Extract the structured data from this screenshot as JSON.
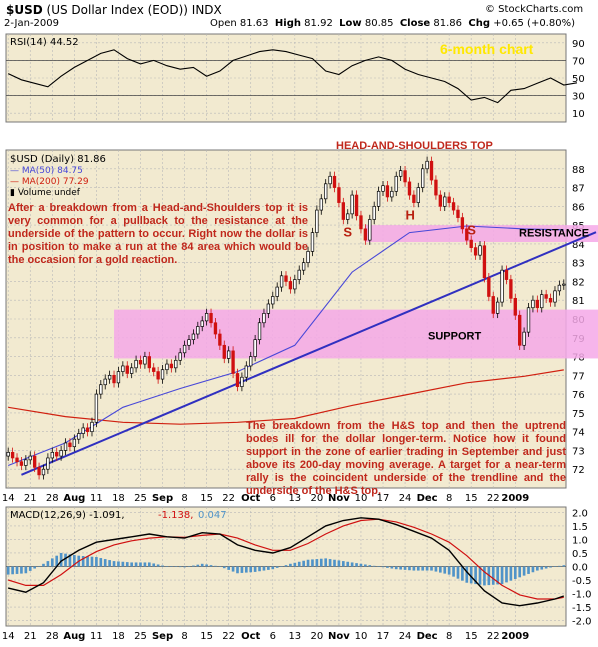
{
  "header": {
    "symbol": "$USD",
    "name": "(US Dollar Index (EOD))",
    "exchange": "INDX",
    "credit": "© StockCharts.com",
    "date": "2-Jan-2009",
    "open_label": "Open",
    "open": "81.63",
    "high_label": "High",
    "high": "81.92",
    "low_label": "Low",
    "low": "80.85",
    "close_label": "Close",
    "close": "81.86",
    "chg_label": "Chg",
    "chg": "+0.65 (+0.80%)"
  },
  "colors": {
    "panel_bg": "#f2ead0",
    "grid": "#b8b8b8",
    "pink_zone": "#f4a8e8",
    "trendline": "#3030c0",
    "ma50": "#4848d8",
    "ma200": "#d02010",
    "annotation": "#c0281c",
    "chart_title": "#ffe800",
    "candle_up": "#000000",
    "candle_down": "#d01010"
  },
  "chart_data": [
    {
      "type": "line",
      "panel": "rsi",
      "label": "RSI(14) 44.52",
      "ylim": [
        0,
        100
      ],
      "yticks": [
        10,
        30,
        50,
        70,
        90
      ],
      "reference_lines": [
        30,
        70
      ],
      "x": [
        0,
        3,
        6,
        9,
        12,
        15,
        18,
        21,
        24,
        27,
        30,
        33,
        36,
        39,
        42,
        45,
        48,
        51,
        54,
        57,
        60,
        63,
        66,
        69,
        72,
        75,
        78,
        81,
        84,
        87,
        90,
        93,
        96,
        99,
        102,
        105,
        108,
        111,
        114,
        117,
        120,
        123,
        126,
        129
      ],
      "values": [
        55,
        48,
        44,
        40,
        52,
        62,
        70,
        78,
        82,
        72,
        66,
        70,
        64,
        60,
        62,
        52,
        58,
        70,
        75,
        80,
        82,
        80,
        76,
        72,
        58,
        54,
        64,
        70,
        74,
        70,
        60,
        54,
        50,
        46,
        38,
        25,
        28,
        22,
        36,
        38,
        44,
        50,
        42,
        44.52
      ]
    },
    {
      "type": "candlestick",
      "panel": "price",
      "label": "$USD (Daily) 81.86",
      "title": "6-month chart",
      "ylim": [
        71,
        89
      ],
      "yticks": [
        72,
        73,
        74,
        75,
        76,
        77,
        78,
        79,
        80,
        81,
        82,
        83,
        84,
        85,
        86,
        87,
        88
      ],
      "x_labels": [
        "14",
        "21",
        "28",
        "Aug",
        "11",
        "18",
        "25",
        "Sep",
        "8",
        "15",
        "22",
        "Oct",
        "6",
        "13",
        "20",
        "Nov",
        "10",
        "17",
        "24",
        "Dec",
        "8",
        "15",
        "22",
        "2009"
      ],
      "x_label_index": [
        0,
        5,
        10,
        15,
        20,
        25,
        30,
        35,
        40,
        45,
        50,
        55,
        60,
        65,
        70,
        75,
        80,
        85,
        90,
        95,
        100,
        105,
        110,
        115
      ],
      "closes": [
        72.9,
        72.6,
        72.4,
        72.2,
        72.5,
        72.7,
        72.1,
        71.7,
        72.0,
        72.6,
        72.9,
        72.7,
        73.0,
        73.4,
        73.2,
        73.6,
        73.9,
        74.2,
        74.0,
        74.5,
        76.0,
        76.5,
        76.8,
        77.0,
        76.6,
        77.2,
        77.5,
        77.1,
        77.4,
        77.8,
        77.6,
        78.0,
        77.4,
        77.2,
        76.8,
        77.3,
        77.6,
        77.4,
        77.8,
        78.2,
        78.6,
        78.9,
        79.2,
        79.6,
        79.9,
        80.3,
        79.8,
        79.2,
        78.6,
        77.9,
        78.3,
        77.1,
        76.4,
        76.9,
        77.5,
        78.0,
        78.9,
        79.8,
        80.3,
        80.8,
        81.2,
        81.7,
        82.3,
        82.0,
        81.6,
        82.1,
        82.6,
        83.0,
        83.6,
        84.6,
        85.8,
        86.4,
        87.2,
        87.6,
        87.0,
        86.2,
        85.3,
        85.6,
        86.6,
        85.5,
        84.8,
        84.2,
        85.3,
        86.0,
        86.8,
        87.1,
        86.5,
        86.8,
        87.6,
        87.9,
        87.3,
        86.6,
        86.2,
        87.0,
        88.0,
        88.4,
        87.4,
        86.6,
        86.0,
        86.5,
        86.2,
        85.8,
        85.4,
        84.8,
        84.2,
        83.8,
        83.4,
        83.9,
        82.2,
        81.2,
        80.3,
        80.9,
        82.6,
        82.1,
        81.1,
        80.2,
        78.6,
        79.3,
        80.6,
        81.0,
        80.6,
        81.3,
        81.1,
        80.9,
        81.5,
        81.8,
        81.86
      ],
      "ma50": {
        "label": "MA(50) 84.75",
        "x": [
          0,
          13,
          26,
          39,
          52,
          65,
          78,
          91,
          104,
          117,
          126
        ],
        "values": [
          72.2,
          73.4,
          75.3,
          76.3,
          77.2,
          78.6,
          82.5,
          84.6,
          84.95,
          84.8,
          84.75
        ]
      },
      "ma200": {
        "label": "MA(200) 77.29",
        "x": [
          0,
          13,
          26,
          39,
          52,
          65,
          78,
          91,
          104,
          117,
          126
        ],
        "values": [
          75.3,
          74.8,
          74.5,
          74.4,
          74.5,
          74.7,
          75.4,
          76.0,
          76.6,
          76.95,
          77.29
        ]
      },
      "volume_label": "Volume undef",
      "trendline": {
        "x": [
          3,
          126
        ],
        "values": [
          71.7,
          83.9
        ]
      },
      "zones": [
        {
          "name": "resistance",
          "x": [
            81,
            126
          ],
          "values": [
            84.1,
            85.0
          ]
        },
        {
          "name": "support",
          "x": [
            24,
            126
          ],
          "values": [
            77.9,
            80.5
          ]
        }
      ],
      "annotations": {
        "hs_title": "HEAD-AND-SHOULDERS TOP",
        "s1": "S",
        "h": "H",
        "s2": "S",
        "resistance": "RESISTANCE",
        "support": "SUPPORT",
        "note1": "After a breakdown from a Head-and-Shoulders top it is very common for a pullback to the resistance at the underside of the pattern to occur. Right now the dollar is in position to make a run at the 84 area which would be the occasion for a gold reaction.",
        "note2": "The breakdown from the H&S top and then the uptrend bodes ill for the dollar longer-term. Notice how it found support in the zone of earlier trading in September and just above its 200-day moving average. A target for a near-term rally is the coincident underside of the trendline and the underside of the H&S top."
      }
    },
    {
      "type": "line",
      "panel": "macd",
      "label_main": "MACD(12,26,9) -1.091,",
      "label_signal": "-1.138,",
      "label_hist": "0.047",
      "ylim": [
        -2.2,
        2.2
      ],
      "yticks": [
        -2.0,
        -1.5,
        -1.0,
        -0.5,
        0.0,
        0.5,
        1.0,
        1.5,
        2.0
      ],
      "x": [
        0,
        4,
        8,
        12,
        16,
        20,
        24,
        28,
        32,
        36,
        40,
        44,
        48,
        52,
        56,
        60,
        64,
        68,
        72,
        76,
        80,
        84,
        88,
        92,
        96,
        100,
        104,
        108,
        112,
        116,
        120,
        124,
        126
      ],
      "macd": [
        -0.8,
        -0.95,
        -0.6,
        0.2,
        0.6,
        0.9,
        1.0,
        1.1,
        1.2,
        1.1,
        1.05,
        1.25,
        1.2,
        0.8,
        0.6,
        0.5,
        0.7,
        1.1,
        1.5,
        1.7,
        1.8,
        1.75,
        1.55,
        1.3,
        1.05,
        0.6,
        -0.2,
        -0.9,
        -1.35,
        -1.45,
        -1.35,
        -1.2,
        -1.091
      ],
      "signal": [
        -0.5,
        -0.7,
        -0.7,
        -0.3,
        0.2,
        0.55,
        0.8,
        0.95,
        1.05,
        1.1,
        1.08,
        1.15,
        1.2,
        1.05,
        0.8,
        0.6,
        0.6,
        0.85,
        1.2,
        1.5,
        1.7,
        1.75,
        1.65,
        1.45,
        1.2,
        0.9,
        0.4,
        -0.2,
        -0.7,
        -1.05,
        -1.2,
        -1.2,
        -1.138
      ]
    }
  ],
  "x_axis_labels": [
    "14",
    "21",
    "28",
    "Aug",
    "11",
    "18",
    "25",
    "Sep",
    "8",
    "15",
    "22",
    "Oct",
    "6",
    "13",
    "20",
    "Nov",
    "10",
    "17",
    "24",
    "Dec",
    "8",
    "15",
    "22",
    "2009"
  ]
}
